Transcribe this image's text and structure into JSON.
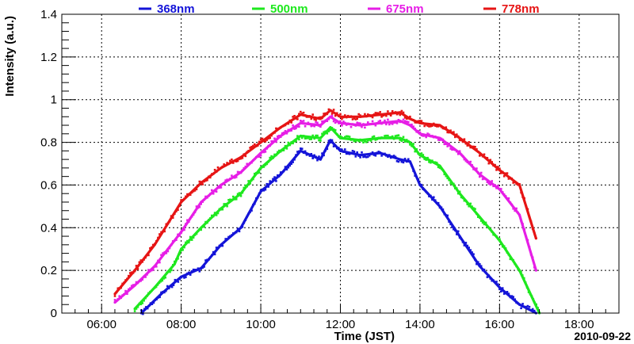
{
  "chart_data": {
    "type": "line",
    "title": "",
    "xlabel": "Time (JST)",
    "ylabel": "Intensity (a.u.)",
    "date_label": "2010-09-22",
    "xlim": [
      "05:00",
      "19:00"
    ],
    "ylim": [
      0,
      1.4
    ],
    "x_ticks": [
      "06:00",
      "08:00",
      "10:00",
      "12:00",
      "14:00",
      "16:00",
      "18:00"
    ],
    "y_ticks": [
      "0",
      "0.2",
      "0.4",
      "0.6",
      "0.8",
      "1",
      "1.2",
      "1.4"
    ],
    "grid": true,
    "legend_position": "top",
    "series": [
      {
        "name": "368nm",
        "color": "#1414d8",
        "x": [
          "07:00",
          "07:30",
          "08:00",
          "08:30",
          "09:00",
          "09:30",
          "10:00",
          "10:30",
          "11:00",
          "11:30",
          "11:45",
          "12:00",
          "12:30",
          "13:00",
          "13:30",
          "13:45",
          "14:00",
          "14:30",
          "15:00",
          "15:30",
          "16:00",
          "16:30",
          "16:55"
        ],
        "y": [
          0.0,
          0.09,
          0.17,
          0.21,
          0.32,
          0.4,
          0.57,
          0.65,
          0.76,
          0.72,
          0.81,
          0.76,
          0.74,
          0.75,
          0.72,
          0.71,
          0.6,
          0.5,
          0.36,
          0.22,
          0.12,
          0.04,
          0.0
        ]
      },
      {
        "name": "500nm",
        "color": "#1ee81e",
        "x": [
          "06:50",
          "07:20",
          "07:50",
          "08:00",
          "08:30",
          "09:00",
          "09:30",
          "10:00",
          "10:30",
          "11:00",
          "11:30",
          "11:45",
          "12:00",
          "12:30",
          "13:00",
          "13:30",
          "13:45",
          "14:00",
          "14:30",
          "15:00",
          "15:30",
          "16:00",
          "16:30",
          "17:00"
        ],
        "y": [
          0.02,
          0.12,
          0.23,
          0.3,
          0.4,
          0.49,
          0.56,
          0.68,
          0.76,
          0.83,
          0.82,
          0.87,
          0.82,
          0.81,
          0.82,
          0.82,
          0.8,
          0.74,
          0.69,
          0.56,
          0.45,
          0.34,
          0.2,
          0.0
        ]
      },
      {
        "name": "675nm",
        "color": "#e61ee6",
        "x": [
          "06:20",
          "06:50",
          "07:20",
          "07:40",
          "08:00",
          "08:30",
          "09:00",
          "09:30",
          "10:00",
          "10:30",
          "11:00",
          "11:30",
          "11:45",
          "12:00",
          "12:30",
          "13:00",
          "13:30",
          "13:45",
          "14:00",
          "14:30",
          "15:00",
          "15:30",
          "16:00",
          "16:30",
          "16:55"
        ],
        "y": [
          0.05,
          0.13,
          0.22,
          0.3,
          0.38,
          0.52,
          0.6,
          0.66,
          0.75,
          0.83,
          0.89,
          0.88,
          0.92,
          0.89,
          0.88,
          0.89,
          0.9,
          0.88,
          0.84,
          0.82,
          0.75,
          0.65,
          0.58,
          0.46,
          0.2
        ]
      },
      {
        "name": "778nm",
        "color": "#e61414",
        "x": [
          "06:20",
          "06:50",
          "07:20",
          "07:40",
          "08:00",
          "08:30",
          "09:00",
          "09:30",
          "10:00",
          "10:30",
          "11:00",
          "11:30",
          "11:45",
          "12:00",
          "12:30",
          "13:00",
          "13:30",
          "13:45",
          "14:00",
          "14:30",
          "15:00",
          "15:30",
          "16:00",
          "16:30",
          "16:55"
        ],
        "y": [
          0.09,
          0.2,
          0.32,
          0.42,
          0.52,
          0.61,
          0.68,
          0.73,
          0.8,
          0.87,
          0.93,
          0.91,
          0.95,
          0.92,
          0.92,
          0.93,
          0.94,
          0.91,
          0.89,
          0.88,
          0.82,
          0.75,
          0.67,
          0.6,
          0.35
        ]
      }
    ]
  }
}
